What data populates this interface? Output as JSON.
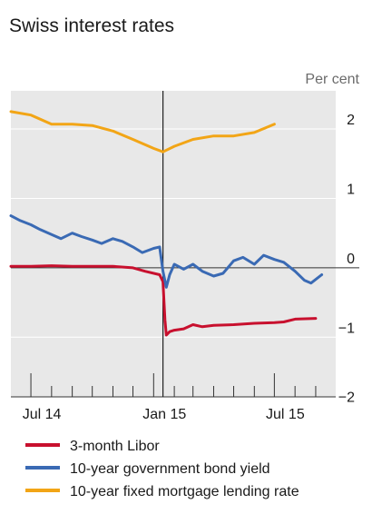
{
  "chart_data": {
    "type": "line",
    "title": "Swiss interest rates",
    "unit_label": "Per cent",
    "ylim": [
      -2,
      3
    ],
    "yticks": [
      {
        "value": 2,
        "label": "2"
      },
      {
        "value": 1,
        "label": "1"
      },
      {
        "value": 0,
        "label": "0"
      },
      {
        "value": -1,
        "label": "−1"
      },
      {
        "value": -2,
        "label": "−2"
      }
    ],
    "xlim": [
      "2014-06-01",
      "2015-10-01"
    ],
    "xticks": [
      {
        "date": "2014-07-01",
        "label": "Jul 14"
      },
      {
        "date": "2015-01-01",
        "label": "Jan 15"
      },
      {
        "date": "2015-07-01",
        "label": "Jul 15"
      }
    ],
    "minor_ticks": [
      "2014-08-01",
      "2014-09-01",
      "2014-10-01",
      "2014-11-01",
      "2014-12-01",
      "2015-02-01",
      "2015-03-01",
      "2015-04-01",
      "2015-05-01",
      "2015-06-01",
      "2015-08-01",
      "2015-09-01"
    ],
    "event_line": {
      "date": "2015-01-15"
    },
    "zero_line": true,
    "legend_position": "bottom",
    "series": [
      {
        "name": "3-month Libor",
        "color": "#c8102e",
        "points": [
          [
            "2014-06-01",
            0.02
          ],
          [
            "2014-07-01",
            0.02
          ],
          [
            "2014-08-01",
            0.03
          ],
          [
            "2014-09-01",
            0.02
          ],
          [
            "2014-10-01",
            0.02
          ],
          [
            "2014-11-01",
            0.02
          ],
          [
            "2014-12-01",
            0.0
          ],
          [
            "2014-12-19",
            -0.05
          ],
          [
            "2015-01-10",
            -0.1
          ],
          [
            "2015-01-15",
            -0.2
          ],
          [
            "2015-01-18",
            -0.75
          ],
          [
            "2015-01-20",
            -0.97
          ],
          [
            "2015-01-25",
            -0.92
          ],
          [
            "2015-02-01",
            -0.9
          ],
          [
            "2015-02-15",
            -0.88
          ],
          [
            "2015-03-01",
            -0.82
          ],
          [
            "2015-03-15",
            -0.85
          ],
          [
            "2015-04-01",
            -0.83
          ],
          [
            "2015-05-01",
            -0.82
          ],
          [
            "2015-06-01",
            -0.8
          ],
          [
            "2015-07-01",
            -0.79
          ],
          [
            "2015-07-15",
            -0.78
          ],
          [
            "2015-08-01",
            -0.74
          ],
          [
            "2015-09-01",
            -0.73
          ]
        ]
      },
      {
        "name": "10-year government bond yield",
        "color": "#3a6ab4",
        "points": [
          [
            "2014-06-01",
            0.75
          ],
          [
            "2014-06-15",
            0.68
          ],
          [
            "2014-07-01",
            0.62
          ],
          [
            "2014-07-15",
            0.55
          ],
          [
            "2014-08-01",
            0.48
          ],
          [
            "2014-08-15",
            0.42
          ],
          [
            "2014-09-01",
            0.5
          ],
          [
            "2014-09-15",
            0.45
          ],
          [
            "2014-10-01",
            0.4
          ],
          [
            "2014-10-15",
            0.35
          ],
          [
            "2014-11-01",
            0.42
          ],
          [
            "2014-11-15",
            0.38
          ],
          [
            "2014-12-01",
            0.3
          ],
          [
            "2014-12-15",
            0.22
          ],
          [
            "2015-01-01",
            0.28
          ],
          [
            "2015-01-10",
            0.3
          ],
          [
            "2015-01-15",
            -0.05
          ],
          [
            "2015-01-20",
            -0.28
          ],
          [
            "2015-01-25",
            -0.1
          ],
          [
            "2015-02-01",
            0.05
          ],
          [
            "2015-02-15",
            -0.02
          ],
          [
            "2015-03-01",
            0.05
          ],
          [
            "2015-03-15",
            -0.05
          ],
          [
            "2015-04-01",
            -0.12
          ],
          [
            "2015-04-15",
            -0.08
          ],
          [
            "2015-05-01",
            0.1
          ],
          [
            "2015-05-15",
            0.15
          ],
          [
            "2015-06-01",
            0.05
          ],
          [
            "2015-06-15",
            0.18
          ],
          [
            "2015-07-01",
            0.12
          ],
          [
            "2015-07-15",
            0.08
          ],
          [
            "2015-08-01",
            -0.05
          ],
          [
            "2015-08-15",
            -0.18
          ],
          [
            "2015-08-25",
            -0.22
          ],
          [
            "2015-09-10",
            -0.1
          ]
        ]
      },
      {
        "name": "10-year fixed mortgage lending rate",
        "color": "#f2a516",
        "points": [
          [
            "2014-06-01",
            2.25
          ],
          [
            "2014-07-01",
            2.2
          ],
          [
            "2014-08-01",
            2.07
          ],
          [
            "2014-09-01",
            2.07
          ],
          [
            "2014-10-01",
            2.05
          ],
          [
            "2014-11-01",
            1.97
          ],
          [
            "2014-12-01",
            1.85
          ],
          [
            "2015-01-01",
            1.72
          ],
          [
            "2015-01-15",
            1.67
          ],
          [
            "2015-02-01",
            1.75
          ],
          [
            "2015-03-01",
            1.85
          ],
          [
            "2015-04-01",
            1.9
          ],
          [
            "2015-05-01",
            1.9
          ],
          [
            "2015-06-01",
            1.95
          ],
          [
            "2015-07-01",
            2.07
          ]
        ]
      }
    ]
  }
}
